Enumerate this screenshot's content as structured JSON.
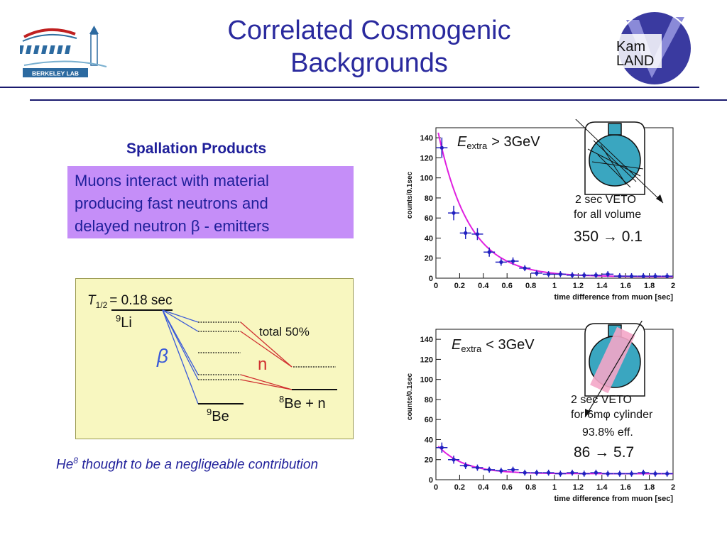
{
  "slide": {
    "title_line1": "Correlated Cosmogenic",
    "title_line2": "Backgrounds",
    "left_logo_text": "BERKELEY LAB",
    "right_logo_text_1": "Kam",
    "right_logo_text_2": "LAND",
    "spallation_heading": "Spallation Products",
    "description_lines": [
      "Muons interact with material",
      "producing fast neutrons and",
      "delayed neutron β - emitters"
    ],
    "footnote_prefix": "He",
    "footnote_sup": "8",
    "footnote_rest": " thought to be a negligeable contribution"
  },
  "decay_diagram": {
    "halflife": "T",
    "halflife_sub": "1/2",
    "halflife_value": "= 0.18 sec",
    "parent": "Li",
    "parent_mass": "9",
    "beta": "β",
    "total": "total 50%",
    "neutron": "n",
    "daughter": "Be",
    "daughter_mass": "9",
    "final": "Be + n",
    "final_mass": "8"
  },
  "colors": {
    "title": "#2a2a9e",
    "purple_box": "#c58ef8",
    "yellow_box": "#f8f7c0",
    "fit_curve": "#e020e0",
    "data_points": "#2020c0",
    "veto_pink": "#f4a6c8",
    "detector_blue": "#3aa6c0"
  },
  "chart_data": [
    {
      "type": "scatter",
      "xlabel": "time difference from muon [sec]",
      "ylabel": "counts/0.1sec",
      "xlim": [
        0,
        2
      ],
      "ylim": [
        0,
        150
      ],
      "xticks": [
        "0",
        "0.2",
        "0.4",
        "0.6",
        "0.8",
        "1",
        "1.2",
        "1.4",
        "1.6",
        "1.8",
        "2"
      ],
      "yticks": [
        "0",
        "20",
        "40",
        "60",
        "80",
        "100",
        "120",
        "140"
      ],
      "label_main": "E",
      "label_sub": "extra",
      "label_rel": "> 3GeV",
      "annotation_1": "2 sec VETO",
      "annotation_2": "for all volume",
      "reduction": "350 → 0.1",
      "points": [
        {
          "x": 0.05,
          "y": 130
        },
        {
          "x": 0.15,
          "y": 65
        },
        {
          "x": 0.25,
          "y": 45
        },
        {
          "x": 0.35,
          "y": 44
        },
        {
          "x": 0.45,
          "y": 26
        },
        {
          "x": 0.55,
          "y": 16
        },
        {
          "x": 0.65,
          "y": 17
        },
        {
          "x": 0.75,
          "y": 10
        },
        {
          "x": 0.85,
          "y": 5
        },
        {
          "x": 0.95,
          "y": 4
        },
        {
          "x": 1.05,
          "y": 4
        },
        {
          "x": 1.15,
          "y": 3
        },
        {
          "x": 1.25,
          "y": 3
        },
        {
          "x": 1.35,
          "y": 3
        },
        {
          "x": 1.45,
          "y": 4
        },
        {
          "x": 1.55,
          "y": 2
        },
        {
          "x": 1.65,
          "y": 2
        },
        {
          "x": 1.75,
          "y": 2
        },
        {
          "x": 1.85,
          "y": 2
        },
        {
          "x": 1.95,
          "y": 2
        }
      ],
      "fit": {
        "amplitude": 155,
        "tau": 0.26,
        "offset": 1.5
      }
    },
    {
      "type": "scatter",
      "xlabel": "time difference from muon [sec]",
      "ylabel": "counts/0.1sec",
      "xlim": [
        0,
        2
      ],
      "ylim": [
        0,
        150
      ],
      "xticks": [
        "0",
        "0.2",
        "0.4",
        "0.6",
        "0.8",
        "1",
        "1.2",
        "1.4",
        "1.6",
        "1.8",
        "2"
      ],
      "yticks": [
        "0",
        "20",
        "40",
        "60",
        "80",
        "100",
        "120",
        "140"
      ],
      "label_main": "E",
      "label_sub": "extra",
      "label_rel": "< 3GeV",
      "annotation_1": "2 sec VETO",
      "annotation_2": "for 6mφ cylinder",
      "annotation_3": "93.8% eff.",
      "reduction": "86 → 5.7",
      "points": [
        {
          "x": 0.05,
          "y": 32
        },
        {
          "x": 0.15,
          "y": 20
        },
        {
          "x": 0.25,
          "y": 14
        },
        {
          "x": 0.35,
          "y": 12
        },
        {
          "x": 0.45,
          "y": 10
        },
        {
          "x": 0.55,
          "y": 9
        },
        {
          "x": 0.65,
          "y": 10
        },
        {
          "x": 0.75,
          "y": 7
        },
        {
          "x": 0.85,
          "y": 7
        },
        {
          "x": 0.95,
          "y": 7
        },
        {
          "x": 1.05,
          "y": 6
        },
        {
          "x": 1.15,
          "y": 7
        },
        {
          "x": 1.25,
          "y": 6
        },
        {
          "x": 1.35,
          "y": 7
        },
        {
          "x": 1.45,
          "y": 6
        },
        {
          "x": 1.55,
          "y": 6
        },
        {
          "x": 1.65,
          "y": 6
        },
        {
          "x": 1.75,
          "y": 7
        },
        {
          "x": 1.85,
          "y": 6
        },
        {
          "x": 1.95,
          "y": 6
        }
      ],
      "fit": {
        "amplitude": 30,
        "tau": 0.22,
        "offset": 6
      }
    }
  ]
}
